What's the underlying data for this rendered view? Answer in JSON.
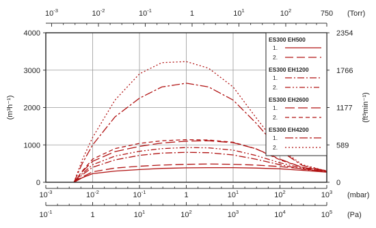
{
  "chart_data": {
    "type": "line",
    "x_scale": "log",
    "xlim": [
      0.001,
      1000
    ],
    "ylim": [
      0,
      4000
    ],
    "grid": true,
    "legend_placement": "right",
    "colors": {
      "series": "#b01010",
      "axis": "#333333",
      "grid": "#999999"
    },
    "left_axis": {
      "label": "(m³h⁻¹)",
      "ticks": [
        {
          "value": 0,
          "label": "0"
        },
        {
          "value": 1000,
          "label": "1000"
        },
        {
          "value": 2000,
          "label": "2000"
        },
        {
          "value": 3000,
          "label": "3000"
        },
        {
          "value": 4000,
          "label": "4000"
        }
      ]
    },
    "right_axis": {
      "label": "(ft³min⁻¹)",
      "ticks": [
        {
          "value": 0,
          "label": "0"
        },
        {
          "value": 1000,
          "label": "589"
        },
        {
          "value": 2000,
          "label": "1177"
        },
        {
          "value": 3000,
          "label": "1766"
        },
        {
          "value": 4000,
          "label": "2354"
        }
      ]
    },
    "top_axis": {
      "unit": "(Torr)",
      "ticks": [
        {
          "mbar": 0.00133,
          "base": "10",
          "exp": "-3"
        },
        {
          "mbar": 0.0133,
          "base": "10",
          "exp": "-2"
        },
        {
          "mbar": 0.133,
          "base": "10",
          "exp": "-1"
        },
        {
          "mbar": 1.33,
          "base": "1",
          "exp": ""
        },
        {
          "mbar": 13.3,
          "base": "10",
          "exp": "1"
        },
        {
          "mbar": 133,
          "base": "10",
          "exp": "2"
        },
        {
          "mbar": 1000,
          "base": "750",
          "exp": ""
        }
      ]
    },
    "bottom_axis": {
      "unit": "(mbar)",
      "ticks": [
        {
          "mbar": 0.001,
          "base": "10",
          "exp": "-3"
        },
        {
          "mbar": 0.01,
          "base": "10",
          "exp": "-2"
        },
        {
          "mbar": 0.1,
          "base": "10",
          "exp": "-1"
        },
        {
          "mbar": 1,
          "base": "1",
          "exp": ""
        },
        {
          "mbar": 10,
          "base": "10",
          "exp": "1"
        },
        {
          "mbar": 100,
          "base": "10",
          "exp": "2"
        },
        {
          "mbar": 1000,
          "base": "10",
          "exp": "3"
        }
      ]
    },
    "pa_axis": {
      "unit": "(Pa)",
      "ticks": [
        {
          "mbar": 0.001,
          "base": "10",
          "exp": "-1"
        },
        {
          "mbar": 0.01,
          "base": "1",
          "exp": ""
        },
        {
          "mbar": 0.1,
          "base": "10",
          "exp": "1"
        },
        {
          "mbar": 1,
          "base": "10",
          "exp": "2"
        },
        {
          "mbar": 10,
          "base": "10",
          "exp": "3"
        },
        {
          "mbar": 100,
          "base": "10",
          "exp": "4"
        },
        {
          "mbar": 1000,
          "base": "10",
          "exp": "5"
        }
      ]
    },
    "legend": {
      "groups": [
        {
          "title": "ES300 EH500",
          "items": [
            {
              "label": "1.",
              "series": 0
            },
            {
              "label": "2.",
              "series": 1
            }
          ]
        },
        {
          "title": "ES300 EH1200",
          "items": [
            {
              "label": "1.",
              "series": 2
            },
            {
              "label": "2.",
              "series": 3
            }
          ]
        },
        {
          "title": "ES300 EH2600",
          "items": [
            {
              "label": "1.",
              "series": 4
            },
            {
              "label": "2.",
              "series": 5
            }
          ]
        },
        {
          "title": "ES300 EH4200",
          "items": [
            {
              "label": "1.",
              "series": 6
            },
            {
              "label": "2.",
              "series": 7
            }
          ]
        }
      ]
    },
    "series": [
      {
        "group": "ES300 EH500",
        "item": "1.",
        "dash": "solid",
        "x": [
          0.004,
          0.006,
          0.01,
          0.03,
          0.1,
          0.3,
          1,
          3,
          10,
          30,
          100,
          300,
          1000
        ],
        "y": [
          0,
          120,
          230,
          300,
          340,
          370,
          385,
          390,
          390,
          380,
          360,
          320,
          270
        ]
      },
      {
        "group": "ES300 EH500",
        "item": "2.",
        "dash": "long-dash",
        "x": [
          0.004,
          0.006,
          0.01,
          0.03,
          0.1,
          0.3,
          1,
          3,
          10,
          30,
          100,
          300,
          1000
        ],
        "y": [
          0,
          140,
          280,
          380,
          430,
          460,
          480,
          490,
          480,
          460,
          420,
          360,
          290
        ]
      },
      {
        "group": "ES300 EH1200",
        "item": "1.",
        "dash": "dash-dot",
        "x": [
          0.004,
          0.006,
          0.01,
          0.03,
          0.1,
          0.3,
          1,
          3,
          10,
          30,
          100,
          300,
          1000
        ],
        "y": [
          0,
          200,
          400,
          600,
          720,
          780,
          800,
          790,
          730,
          620,
          470,
          350,
          280
        ]
      },
      {
        "group": "ES300 EH1200",
        "item": "2.",
        "dash": "dash-dot-dot",
        "x": [
          0.004,
          0.006,
          0.01,
          0.03,
          0.1,
          0.3,
          1,
          3,
          10,
          30,
          100,
          300,
          1000
        ],
        "y": [
          0,
          230,
          470,
          700,
          830,
          900,
          930,
          920,
          860,
          720,
          520,
          380,
          300
        ]
      },
      {
        "group": "ES300 EH2600",
        "item": "1.",
        "dash": "long-dash-gap",
        "x": [
          0.004,
          0.006,
          0.01,
          0.03,
          0.1,
          0.3,
          1,
          3,
          10,
          30,
          100,
          300,
          1000
        ],
        "y": [
          0,
          280,
          560,
          820,
          960,
          1050,
          1100,
          1110,
          1060,
          900,
          620,
          400,
          300
        ]
      },
      {
        "group": "ES300 EH2600",
        "item": "2.",
        "dash": "short-dash",
        "x": [
          0.004,
          0.006,
          0.01,
          0.03,
          0.1,
          0.3,
          1,
          3,
          10,
          30,
          100,
          300,
          1000
        ],
        "y": [
          0,
          300,
          620,
          900,
          1040,
          1110,
          1140,
          1130,
          1070,
          900,
          600,
          400,
          310
        ]
      },
      {
        "group": "ES300 EH4200",
        "item": "1.",
        "dash": "dash-dot-long",
        "x": [
          0.004,
          0.006,
          0.01,
          0.03,
          0.1,
          0.3,
          1,
          3,
          10,
          30,
          100,
          300,
          1000
        ],
        "y": [
          0,
          500,
          1000,
          1750,
          2250,
          2550,
          2650,
          2550,
          2200,
          1600,
          850,
          450,
          300
        ]
      },
      {
        "group": "ES300 EH4200",
        "item": "2.",
        "dash": "dotted",
        "x": [
          0.004,
          0.006,
          0.01,
          0.03,
          0.1,
          0.3,
          1,
          3,
          10,
          30,
          100,
          300,
          1000
        ],
        "y": [
          0,
          600,
          1200,
          2200,
          2900,
          3200,
          3230,
          3050,
          2550,
          1750,
          900,
          470,
          300
        ]
      }
    ]
  }
}
